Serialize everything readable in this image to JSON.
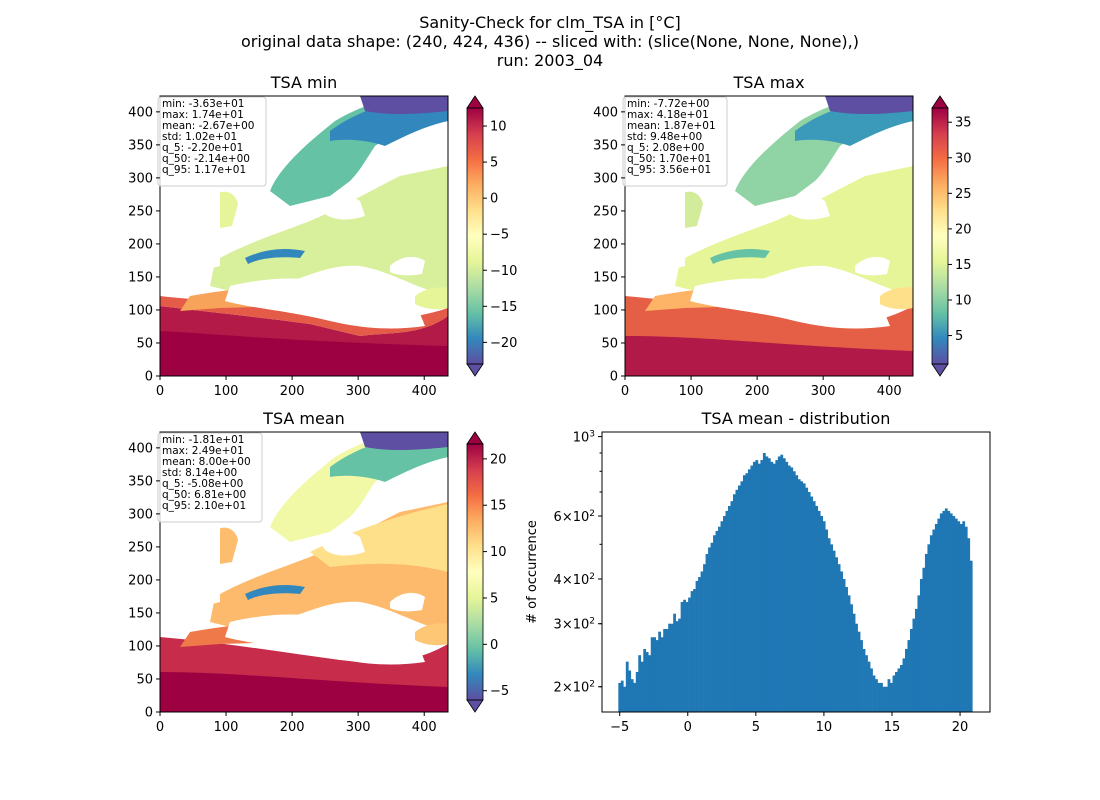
{
  "figure": {
    "title_lines": [
      "Sanity-Check for clm_TSA in [°C]",
      "original data shape: (240, 424, 436) -- sliced with: (slice(None, None, None),)",
      "run: 2003_04"
    ]
  },
  "colors": {
    "bar": "#1f77b4",
    "spectral": [
      "#5e4fa2",
      "#3288bd",
      "#66c2a5",
      "#abdda4",
      "#e6f598",
      "#ffffbf",
      "#fee08b",
      "#fdae61",
      "#f46d43",
      "#d53e4f",
      "#9e0142"
    ]
  },
  "chart_data": [
    {
      "type": "heatmap",
      "title": "TSA min",
      "xlim": [
        0,
        436
      ],
      "ylim": [
        0,
        424
      ],
      "xticks": [
        0,
        100,
        200,
        300,
        400
      ],
      "yticks": [
        0,
        50,
        100,
        150,
        200,
        250,
        300,
        350,
        400
      ],
      "colorbar": {
        "range": [
          -23,
          12.5
        ],
        "ticks": [
          10,
          5,
          0,
          -5,
          -10,
          -15,
          -20
        ],
        "tick_labels": [
          "10",
          "5",
          "0",
          "−5",
          "−10",
          "−15",
          "−20"
        ]
      },
      "stats": [
        "min: -3.63e+01",
        "max: 1.74e+01",
        "mean: -2.67e+00",
        "std: 1.02e+01",
        "q_5: -2.20e+01",
        "q_50: -2.14e+00",
        "q_95: 1.17e+01"
      ]
    },
    {
      "type": "heatmap",
      "title": "TSA max",
      "xlim": [
        0,
        436
      ],
      "ylim": [
        0,
        424
      ],
      "xticks": [
        0,
        100,
        200,
        300,
        400
      ],
      "yticks": [
        0,
        50,
        100,
        150,
        200,
        250,
        300,
        350,
        400
      ],
      "colorbar": {
        "range": [
          1,
          37
        ],
        "ticks": [
          35,
          30,
          25,
          20,
          15,
          10,
          5
        ],
        "tick_labels": [
          "35",
          "30",
          "25",
          "20",
          "15",
          "10",
          "5"
        ]
      },
      "stats": [
        "min: -7.72e+00",
        "max: 4.18e+01",
        "mean: 1.87e+01",
        "std: 9.48e+00",
        "q_5: 2.08e+00",
        "q_50: 1.70e+01",
        "q_95: 3.56e+01"
      ]
    },
    {
      "type": "heatmap",
      "title": "TSA mean",
      "xlim": [
        0,
        436
      ],
      "ylim": [
        0,
        424
      ],
      "xticks": [
        0,
        100,
        200,
        300,
        400
      ],
      "yticks": [
        0,
        50,
        100,
        150,
        200,
        250,
        300,
        350,
        400
      ],
      "colorbar": {
        "range": [
          -6,
          21.6
        ],
        "ticks": [
          20,
          15,
          10,
          5,
          0,
          -5
        ],
        "tick_labels": [
          "20",
          "15",
          "10",
          "5",
          "0",
          "−5"
        ]
      },
      "stats": [
        "min: -1.81e+01",
        "max: 2.49e+01",
        "mean: 8.00e+00",
        "std: 8.14e+00",
        "q_5: -5.08e+00",
        "q_50: 6.81e+00",
        "q_95: 2.10e+01"
      ]
    },
    {
      "type": "bar",
      "title": "TSA mean - distribution",
      "ylabel": "# of occurrence",
      "xlabel": "",
      "yscale": "log",
      "xlim": [
        -6.3,
        22.2
      ],
      "ylim": [
        170,
        1030
      ],
      "xticks": [
        -5,
        0,
        5,
        10,
        15,
        20
      ],
      "xtick_labels": [
        "−5",
        "0",
        "5",
        "10",
        "15",
        "20"
      ],
      "yticks": [
        200,
        300,
        400,
        600,
        1000
      ],
      "ytick_labels": [
        [
          "2",
          "10",
          "2"
        ],
        [
          "3",
          "10",
          "2"
        ],
        [
          "4",
          "10",
          "2"
        ],
        [
          "6",
          "10",
          "2"
        ],
        [
          "",
          "10",
          "3"
        ]
      ],
      "bin_range": [
        -5.1,
        20.9
      ],
      "counts": [
        205,
        208,
        200,
        235,
        222,
        210,
        205,
        220,
        245,
        235,
        255,
        250,
        245,
        275,
        275,
        270,
        285,
        275,
        290,
        290,
        300,
        300,
        320,
        305,
        310,
        345,
        350,
        345,
        355,
        370,
        375,
        395,
        405,
        420,
        440,
        470,
        490,
        505,
        530,
        545,
        560,
        580,
        600,
        620,
        640,
        660,
        690,
        710,
        730,
        750,
        780,
        790,
        810,
        830,
        850,
        860,
        840,
        860,
        900,
        880,
        870,
        850,
        840,
        860,
        880,
        890,
        870,
        850,
        830,
        820,
        800,
        780,
        760,
        750,
        740,
        720,
        700,
        680,
        660,
        640,
        620,
        600,
        580,
        550,
        520,
        500,
        480,
        460,
        440,
        420,
        400,
        380,
        360,
        340,
        320,
        300,
        285,
        270,
        255,
        245,
        235,
        225,
        215,
        210,
        205,
        205,
        200,
        200,
        210,
        205,
        215,
        220,
        225,
        230,
        240,
        255,
        270,
        290,
        310,
        330,
        360,
        400,
        430,
        470,
        500,
        530,
        550,
        570,
        590,
        610,
        620,
        630,
        620,
        610,
        600,
        590,
        580,
        570,
        580,
        560,
        520,
        450
      ]
    }
  ]
}
